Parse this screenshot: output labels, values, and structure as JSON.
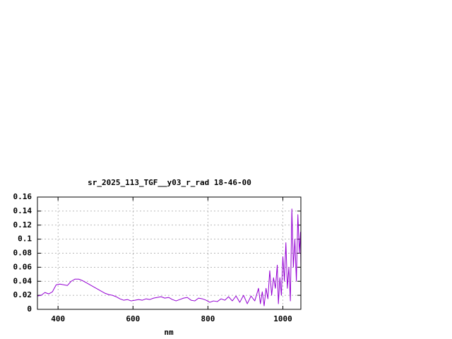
{
  "chart_data": {
    "type": "line",
    "title": "sr_2025_113_TGF__y03_r_rad 18-46-00",
    "x_label": "nm",
    "color": "#9400d3",
    "grid": true,
    "xlim": [
      345,
      1048
    ],
    "ylim": [
      0,
      0.16
    ],
    "xticks": [
      400,
      600,
      800,
      1000
    ],
    "yticks": [
      0,
      0.02,
      0.04,
      0.06,
      0.08,
      0.1,
      0.12,
      0.14,
      0.16
    ],
    "x": [
      345,
      355,
      365,
      375,
      385,
      395,
      405,
      415,
      425,
      435,
      445,
      455,
      465,
      475,
      485,
      495,
      505,
      515,
      525,
      535,
      545,
      555,
      565,
      575,
      585,
      595,
      605,
      615,
      625,
      635,
      645,
      655,
      665,
      675,
      685,
      695,
      705,
      715,
      725,
      735,
      745,
      755,
      765,
      775,
      785,
      795,
      805,
      815,
      825,
      835,
      845,
      855,
      865,
      875,
      885,
      895,
      905,
      915,
      925,
      935,
      940,
      945,
      950,
      955,
      960,
      965,
      970,
      975,
      980,
      985,
      988,
      992,
      996,
      1000,
      1004,
      1008,
      1012,
      1016,
      1020,
      1024,
      1028,
      1032,
      1036,
      1040,
      1044,
      1047,
      1048
    ],
    "values": [
      0.019,
      0.02,
      0.024,
      0.022,
      0.025,
      0.035,
      0.036,
      0.035,
      0.034,
      0.04,
      0.043,
      0.043,
      0.041,
      0.038,
      0.035,
      0.032,
      0.029,
      0.026,
      0.023,
      0.021,
      0.02,
      0.018,
      0.015,
      0.013,
      0.014,
      0.012,
      0.013,
      0.014,
      0.013,
      0.015,
      0.014,
      0.016,
      0.017,
      0.018,
      0.016,
      0.017,
      0.014,
      0.012,
      0.014,
      0.016,
      0.017,
      0.013,
      0.012,
      0.016,
      0.015,
      0.013,
      0.01,
      0.012,
      0.011,
      0.015,
      0.013,
      0.018,
      0.012,
      0.019,
      0.01,
      0.02,
      0.008,
      0.019,
      0.012,
      0.03,
      0.008,
      0.025,
      0.005,
      0.03,
      0.015,
      0.055,
      0.02,
      0.045,
      0.03,
      0.063,
      0.008,
      0.045,
      0.02,
      0.075,
      0.04,
      0.095,
      0.03,
      0.06,
      0.012,
      0.143,
      0.06,
      0.1,
      0.04,
      0.135,
      0.08,
      0.11,
      0.06
    ]
  }
}
